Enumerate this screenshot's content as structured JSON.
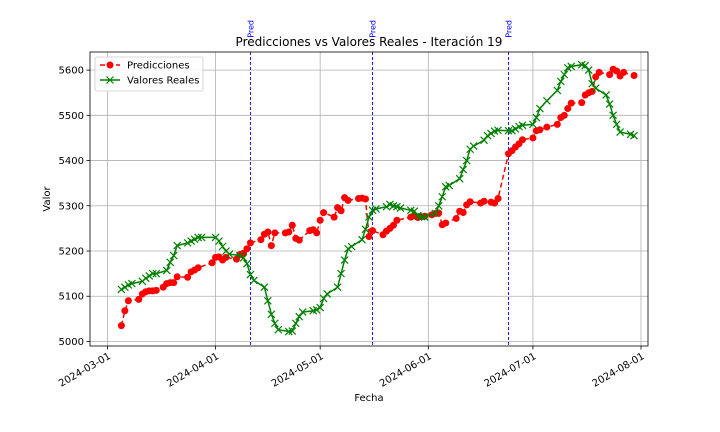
{
  "chart_data": {
    "type": "line",
    "title": "Predicciones vs Valores Reales - Iteración 19",
    "xlabel": "Fecha",
    "ylabel": "Valor",
    "x_is_date": true,
    "xlim": [
      "2024-02-25",
      "2024-08-03"
    ],
    "ylim": [
      4990,
      5640
    ],
    "yticks": [
      5000,
      5100,
      5200,
      5300,
      5400,
      5500,
      5600
    ],
    "xticks": [
      "2024-03-01",
      "2024-04-01",
      "2024-05-01",
      "2024-06-01",
      "2024-07-01",
      "2024-08-01"
    ],
    "grid": true,
    "legend_position": "top-left",
    "vertical_lines": [
      {
        "date": "2024-04-11",
        "label": "Pred",
        "color": "#0000ff"
      },
      {
        "date": "2024-05-16",
        "label": "Pred",
        "color": "#0000ff"
      },
      {
        "date": "2024-06-24",
        "label": "Pred",
        "color": "#0000ff"
      }
    ],
    "series": [
      {
        "name": "Predicciones",
        "color": "#ff0000",
        "marker": "circle",
        "linestyle": "dashed",
        "points": [
          [
            "2024-03-05",
            5035
          ],
          [
            "2024-03-06",
            5068
          ],
          [
            "2024-03-07",
            5090
          ],
          [
            "2024-03-10",
            5093
          ],
          [
            "2024-03-11",
            5105
          ],
          [
            "2024-03-12",
            5110
          ],
          [
            "2024-03-13",
            5112
          ],
          [
            "2024-03-14",
            5112
          ],
          [
            "2024-03-15",
            5113
          ],
          [
            "2024-03-17",
            5120
          ],
          [
            "2024-03-18",
            5128
          ],
          [
            "2024-03-19",
            5130
          ],
          [
            "2024-03-20",
            5130
          ],
          [
            "2024-03-21",
            5143
          ],
          [
            "2024-03-24",
            5142
          ],
          [
            "2024-03-25",
            5154
          ],
          [
            "2024-03-26",
            5158
          ],
          [
            "2024-03-27",
            5163
          ],
          [
            "2024-03-31",
            5174
          ],
          [
            "2024-04-01",
            5186
          ],
          [
            "2024-04-02",
            5187
          ],
          [
            "2024-04-03",
            5180
          ],
          [
            "2024-04-04",
            5186
          ],
          [
            "2024-04-07",
            5182
          ],
          [
            "2024-04-08",
            5192
          ],
          [
            "2024-04-09",
            5195
          ],
          [
            "2024-04-10",
            5205
          ],
          [
            "2024-04-11",
            5218
          ],
          [
            "2024-04-14",
            5225
          ],
          [
            "2024-04-15",
            5237
          ],
          [
            "2024-04-16",
            5242
          ],
          [
            "2024-04-17",
            5212
          ],
          [
            "2024-04-18",
            5240
          ],
          [
            "2024-04-21",
            5240
          ],
          [
            "2024-04-22",
            5242
          ],
          [
            "2024-04-23",
            5257
          ],
          [
            "2024-04-24",
            5228
          ],
          [
            "2024-04-25",
            5224
          ],
          [
            "2024-04-28",
            5245
          ],
          [
            "2024-04-29",
            5247
          ],
          [
            "2024-04-30",
            5240
          ],
          [
            "2024-05-01",
            5268
          ],
          [
            "2024-05-02",
            5285
          ],
          [
            "2024-05-05",
            5275
          ],
          [
            "2024-05-06",
            5296
          ],
          [
            "2024-05-07",
            5289
          ],
          [
            "2024-05-08",
            5318
          ],
          [
            "2024-05-09",
            5312
          ],
          [
            "2024-05-12",
            5316
          ],
          [
            "2024-05-13",
            5317
          ],
          [
            "2024-05-14",
            5315
          ],
          [
            "2024-05-15",
            5232
          ],
          [
            "2024-05-16",
            5245
          ],
          [
            "2024-05-19",
            5236
          ],
          [
            "2024-05-20",
            5244
          ],
          [
            "2024-05-21",
            5250
          ],
          [
            "2024-05-22",
            5257
          ],
          [
            "2024-05-23",
            5268
          ],
          [
            "2024-05-27",
            5275
          ],
          [
            "2024-05-28",
            5278
          ],
          [
            "2024-05-29",
            5274
          ],
          [
            "2024-05-30",
            5276
          ],
          [
            "2024-05-31",
            5277
          ],
          [
            "2024-06-02",
            5280
          ],
          [
            "2024-06-03",
            5283
          ],
          [
            "2024-06-04",
            5284
          ],
          [
            "2024-06-05",
            5258
          ],
          [
            "2024-06-06",
            5262
          ],
          [
            "2024-06-09",
            5272
          ],
          [
            "2024-06-10",
            5288
          ],
          [
            "2024-06-11",
            5285
          ],
          [
            "2024-06-12",
            5302
          ],
          [
            "2024-06-13",
            5309
          ],
          [
            "2024-06-16",
            5306
          ],
          [
            "2024-06-17",
            5310
          ],
          [
            "2024-06-19",
            5308
          ],
          [
            "2024-06-20",
            5306
          ],
          [
            "2024-06-21",
            5316
          ],
          [
            "2024-06-24",
            5415
          ],
          [
            "2024-06-25",
            5422
          ],
          [
            "2024-06-26",
            5430
          ],
          [
            "2024-06-27",
            5437
          ],
          [
            "2024-06-28",
            5446
          ],
          [
            "2024-07-01",
            5450
          ],
          [
            "2024-07-02",
            5466
          ],
          [
            "2024-07-03",
            5468
          ],
          [
            "2024-07-05",
            5474
          ],
          [
            "2024-07-08",
            5480
          ],
          [
            "2024-07-09",
            5495
          ],
          [
            "2024-07-10",
            5500
          ],
          [
            "2024-07-11",
            5515
          ],
          [
            "2024-07-12",
            5527
          ],
          [
            "2024-07-15",
            5528
          ],
          [
            "2024-07-16",
            5545
          ],
          [
            "2024-07-17",
            5550
          ],
          [
            "2024-07-18",
            5553
          ],
          [
            "2024-07-19",
            5585
          ],
          [
            "2024-07-20",
            5595
          ],
          [
            "2024-07-23",
            5590
          ],
          [
            "2024-07-24",
            5602
          ],
          [
            "2024-07-25",
            5598
          ],
          [
            "2024-07-26",
            5587
          ],
          [
            "2024-07-27",
            5595
          ],
          [
            "2024-07-30",
            5588
          ]
        ]
      },
      {
        "name": "Valores Reales",
        "color": "#008000",
        "marker": "x",
        "linestyle": "solid",
        "points": [
          [
            "2024-03-05",
            5115
          ],
          [
            "2024-03-06",
            5120
          ],
          [
            "2024-03-07",
            5125
          ],
          [
            "2024-03-08",
            5128
          ],
          [
            "2024-03-11",
            5133
          ],
          [
            "2024-03-12",
            5140
          ],
          [
            "2024-03-13",
            5145
          ],
          [
            "2024-03-14",
            5150
          ],
          [
            "2024-03-15",
            5150
          ],
          [
            "2024-03-18",
            5157
          ],
          [
            "2024-03-19",
            5175
          ],
          [
            "2024-03-20",
            5190
          ],
          [
            "2024-03-21",
            5212
          ],
          [
            "2024-03-24",
            5218
          ],
          [
            "2024-03-25",
            5222
          ],
          [
            "2024-03-26",
            5226
          ],
          [
            "2024-03-27",
            5230
          ],
          [
            "2024-03-28",
            5230
          ],
          [
            "2024-04-01",
            5230
          ],
          [
            "2024-04-02",
            5222
          ],
          [
            "2024-04-03",
            5210
          ],
          [
            "2024-04-04",
            5200
          ],
          [
            "2024-04-05",
            5193
          ],
          [
            "2024-04-08",
            5190
          ],
          [
            "2024-04-09",
            5185
          ],
          [
            "2024-04-10",
            5172
          ],
          [
            "2024-04-11",
            5148
          ],
          [
            "2024-04-12",
            5135
          ],
          [
            "2024-04-15",
            5120
          ],
          [
            "2024-04-16",
            5090
          ],
          [
            "2024-04-17",
            5060
          ],
          [
            "2024-04-18",
            5040
          ],
          [
            "2024-04-19",
            5026
          ],
          [
            "2024-04-22",
            5022
          ],
          [
            "2024-04-23",
            5023
          ],
          [
            "2024-04-24",
            5040
          ],
          [
            "2024-04-25",
            5055
          ],
          [
            "2024-04-26",
            5065
          ],
          [
            "2024-04-29",
            5068
          ],
          [
            "2024-04-30",
            5070
          ],
          [
            "2024-05-01",
            5075
          ],
          [
            "2024-05-02",
            5095
          ],
          [
            "2024-05-03",
            5105
          ],
          [
            "2024-05-06",
            5120
          ],
          [
            "2024-05-07",
            5150
          ],
          [
            "2024-05-08",
            5180
          ],
          [
            "2024-05-09",
            5205
          ],
          [
            "2024-05-10",
            5210
          ],
          [
            "2024-05-13",
            5225
          ],
          [
            "2024-05-14",
            5248
          ],
          [
            "2024-05-15",
            5275
          ],
          [
            "2024-05-16",
            5290
          ],
          [
            "2024-05-17",
            5293
          ],
          [
            "2024-05-20",
            5298
          ],
          [
            "2024-05-21",
            5303
          ],
          [
            "2024-05-22",
            5300
          ],
          [
            "2024-05-23",
            5298
          ],
          [
            "2024-05-24",
            5295
          ],
          [
            "2024-05-27",
            5290
          ],
          [
            "2024-05-28",
            5288
          ],
          [
            "2024-05-29",
            5278
          ],
          [
            "2024-05-30",
            5276
          ],
          [
            "2024-05-31",
            5275
          ],
          [
            "2024-06-03",
            5283
          ],
          [
            "2024-06-04",
            5300
          ],
          [
            "2024-06-05",
            5320
          ],
          [
            "2024-06-06",
            5342
          ],
          [
            "2024-06-07",
            5345
          ],
          [
            "2024-06-10",
            5360
          ],
          [
            "2024-06-11",
            5380
          ],
          [
            "2024-06-12",
            5400
          ],
          [
            "2024-06-13",
            5425
          ],
          [
            "2024-06-14",
            5432
          ],
          [
            "2024-06-17",
            5445
          ],
          [
            "2024-06-18",
            5455
          ],
          [
            "2024-06-19",
            5460
          ],
          [
            "2024-06-20",
            5465
          ],
          [
            "2024-06-21",
            5467
          ],
          [
            "2024-06-24",
            5466
          ],
          [
            "2024-06-25",
            5466
          ],
          [
            "2024-06-26",
            5470
          ],
          [
            "2024-06-27",
            5475
          ],
          [
            "2024-06-28",
            5478
          ],
          [
            "2024-07-01",
            5480
          ],
          [
            "2024-07-02",
            5495
          ],
          [
            "2024-07-03",
            5515
          ],
          [
            "2024-07-05",
            5532
          ],
          [
            "2024-07-08",
            5555
          ],
          [
            "2024-07-09",
            5575
          ],
          [
            "2024-07-10",
            5590
          ],
          [
            "2024-07-11",
            5605
          ],
          [
            "2024-07-12",
            5608
          ],
          [
            "2024-07-15",
            5612
          ],
          [
            "2024-07-16",
            5610
          ],
          [
            "2024-07-17",
            5600
          ],
          [
            "2024-07-18",
            5570
          ],
          [
            "2024-07-19",
            5560
          ],
          [
            "2024-07-22",
            5545
          ],
          [
            "2024-07-23",
            5525
          ],
          [
            "2024-07-24",
            5500
          ],
          [
            "2024-07-25",
            5480
          ],
          [
            "2024-07-26",
            5463
          ],
          [
            "2024-07-29",
            5458
          ],
          [
            "2024-07-30",
            5455
          ]
        ]
      }
    ]
  }
}
